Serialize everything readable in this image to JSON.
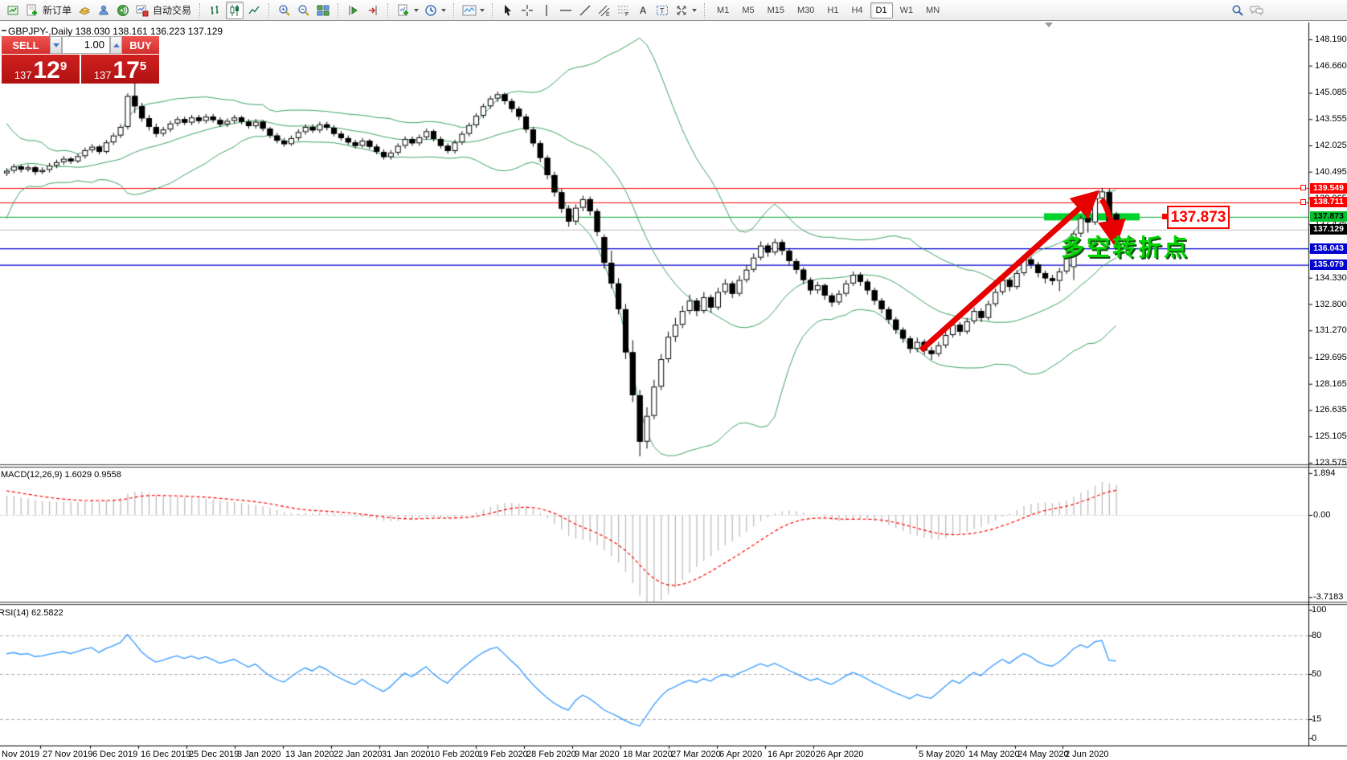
{
  "toolbar": {
    "new_order_label": "新订单",
    "autotrade_label": "自动交易",
    "text_tool_glyph": "A",
    "label_tool_glyph": "T",
    "channel_glyph": "E",
    "fibo_glyph": "F",
    "timeframes": {
      "items": [
        "M1",
        "M5",
        "M15",
        "M30",
        "H1",
        "H4",
        "D1",
        "W1",
        "MN"
      ],
      "active": "D1"
    }
  },
  "chart": {
    "title": "GBPJPY-,Daily  138.030 138.161 136.223 137.129",
    "symbol": "GBPJPY-",
    "period": "Daily",
    "ohlc": {
      "open": "138.030",
      "high": "138.161",
      "low": "136.223",
      "close": "137.129"
    },
    "price_ticks": [
      {
        "t": "148.190",
        "p": 148.19
      },
      {
        "t": "146.660",
        "p": 146.66
      },
      {
        "t": "145.085",
        "p": 145.085
      },
      {
        "t": "143.555",
        "p": 143.555
      },
      {
        "t": "142.025",
        "p": 142.025
      },
      {
        "t": "140.495",
        "p": 140.495
      },
      {
        "t": "138.965",
        "p": 138.965
      },
      {
        "t": "137.435",
        "p": 137.435
      },
      {
        "t": "135.860",
        "p": 135.86
      },
      {
        "t": "134.330",
        "p": 134.33
      },
      {
        "t": "132.800",
        "p": 132.8
      },
      {
        "t": "131.270",
        "p": 131.27
      },
      {
        "t": "129.695",
        "p": 129.695
      },
      {
        "t": "128.165",
        "p": 128.165
      },
      {
        "t": "126.635",
        "p": 126.635
      },
      {
        "t": "125.105",
        "p": 125.105
      },
      {
        "t": "123.575",
        "p": 123.575
      }
    ],
    "level_badges": [
      {
        "t": "139.549",
        "p": 139.549,
        "bg": "#ff0000",
        "fg": "#ffffff"
      },
      {
        "t": "138.711",
        "p": 138.711,
        "bg": "#ff0000",
        "fg": "#ffffff"
      },
      {
        "t": "137.873",
        "p": 137.873,
        "bg": "#00c22c",
        "fg": "#000000"
      },
      {
        "t": "137.129",
        "p": 137.129,
        "bg": "#000000",
        "fg": "#ffffff"
      },
      {
        "t": "136.043",
        "p": 136.043,
        "bg": "#0000d0",
        "fg": "#ffffff"
      },
      {
        "t": "135.079",
        "p": 135.079,
        "bg": "#0000d0",
        "fg": "#ffffff"
      }
    ],
    "levels": [
      {
        "p": 139.549,
        "color": "#ff0000",
        "w": 1
      },
      {
        "p": 138.711,
        "color": "#ff0000",
        "w": 1
      },
      {
        "p": 137.873,
        "color": "#00a22a",
        "w": 1
      },
      {
        "p": 137.129,
        "color": "#bdbdbd",
        "w": 1
      },
      {
        "p": 136.043,
        "color": "#0000d0",
        "w": 1.2
      },
      {
        "p": 135.079,
        "color": "#0000d0",
        "w": 1.2
      }
    ],
    "green_zone_price": 137.873,
    "dates": [
      "Nov 2019",
      "27 Nov 2019",
      "6 Dec 2019",
      "16 Dec 2019",
      "25 Dec 2019",
      "3 Jan 2020",
      "13 Jan 2020",
      "22 Jan 2020",
      "31 Jan 2020",
      "10 Feb 2020",
      "19 Feb 2020",
      "28 Feb 2020",
      "9 Mar 2020",
      "18 Mar 2020",
      "27 Mar 2020",
      "6 Apr 2020",
      "16 Apr 2020",
      "26 Apr 2020",
      "5 May 2020",
      "14 May 2020",
      "24 May 2020",
      "2 Jun 2020"
    ],
    "pre_closes": [
      135.8,
      136.5,
      137.8,
      139.2,
      140.6,
      141.9,
      142.6,
      141.8,
      140.9,
      141.4,
      142.0,
      141.2,
      140.4,
      139.8,
      140.3,
      140.9,
      141.3,
      140.8,
      140.5,
      140.4
    ],
    "candles": [
      [
        140.4,
        140.7,
        140.25,
        140.55
      ],
      [
        140.55,
        140.95,
        140.4,
        140.8
      ],
      [
        140.8,
        140.9,
        140.45,
        140.62
      ],
      [
        140.62,
        140.9,
        140.5,
        140.75
      ],
      [
        140.75,
        140.85,
        140.3,
        140.48
      ],
      [
        140.48,
        140.75,
        140.35,
        140.6
      ],
      [
        140.6,
        141.0,
        140.45,
        140.85
      ],
      [
        140.85,
        141.2,
        140.7,
        141.05
      ],
      [
        141.05,
        141.4,
        140.9,
        141.25
      ],
      [
        141.25,
        141.35,
        140.95,
        141.1
      ],
      [
        141.1,
        141.55,
        141.0,
        141.4
      ],
      [
        141.4,
        141.9,
        141.25,
        141.75
      ],
      [
        141.75,
        142.1,
        141.6,
        141.95
      ],
      [
        141.95,
        142.05,
        141.5,
        141.65
      ],
      [
        141.65,
        142.35,
        141.55,
        142.2
      ],
      [
        142.2,
        142.75,
        142.05,
        142.6
      ],
      [
        142.6,
        143.25,
        142.45,
        143.1
      ],
      [
        143.1,
        145.05,
        142.95,
        144.9
      ],
      [
        144.9,
        147.15,
        143.9,
        144.3
      ],
      [
        144.3,
        144.5,
        143.4,
        143.6
      ],
      [
        143.6,
        143.8,
        142.9,
        143.1
      ],
      [
        143.1,
        143.3,
        142.5,
        142.7
      ],
      [
        142.7,
        143.1,
        142.55,
        142.95
      ],
      [
        142.95,
        143.45,
        142.8,
        143.3
      ],
      [
        143.3,
        143.7,
        143.15,
        143.55
      ],
      [
        143.55,
        143.7,
        143.2,
        143.35
      ],
      [
        143.35,
        143.8,
        143.2,
        143.65
      ],
      [
        143.65,
        143.8,
        143.3,
        143.45
      ],
      [
        143.45,
        143.85,
        143.3,
        143.7
      ],
      [
        143.7,
        143.85,
        143.35,
        143.5
      ],
      [
        143.5,
        143.65,
        143.1,
        143.25
      ],
      [
        143.25,
        143.6,
        143.1,
        143.45
      ],
      [
        143.45,
        143.8,
        143.3,
        143.65
      ],
      [
        143.65,
        143.75,
        143.25,
        143.4
      ],
      [
        143.4,
        143.55,
        143.0,
        143.15
      ],
      [
        143.15,
        143.55,
        143.0,
        143.4
      ],
      [
        143.4,
        143.5,
        142.85,
        143.0
      ],
      [
        143.0,
        143.1,
        142.45,
        142.6
      ],
      [
        142.6,
        142.75,
        142.15,
        142.3
      ],
      [
        142.3,
        142.45,
        141.95,
        142.1
      ],
      [
        142.1,
        142.6,
        142.0,
        142.45
      ],
      [
        142.45,
        142.95,
        142.3,
        142.8
      ],
      [
        142.8,
        143.25,
        142.65,
        143.1
      ],
      [
        143.1,
        143.25,
        142.75,
        142.9
      ],
      [
        142.9,
        143.4,
        142.75,
        143.25
      ],
      [
        143.25,
        143.4,
        142.9,
        143.05
      ],
      [
        143.05,
        143.2,
        142.55,
        142.7
      ],
      [
        142.7,
        142.85,
        142.3,
        142.45
      ],
      [
        142.45,
        142.6,
        142.05,
        142.2
      ],
      [
        142.2,
        142.35,
        141.85,
        142.0
      ],
      [
        142.0,
        142.45,
        141.9,
        142.3
      ],
      [
        142.3,
        142.4,
        141.8,
        141.95
      ],
      [
        141.95,
        142.1,
        141.5,
        141.65
      ],
      [
        141.65,
        141.8,
        141.2,
        141.35
      ],
      [
        141.35,
        141.75,
        141.2,
        141.6
      ],
      [
        141.6,
        142.15,
        141.45,
        142.0
      ],
      [
        142.0,
        142.55,
        141.85,
        142.4
      ],
      [
        142.4,
        142.55,
        142.0,
        142.15
      ],
      [
        142.15,
        142.65,
        142.0,
        142.5
      ],
      [
        142.5,
        143.0,
        142.35,
        142.85
      ],
      [
        142.85,
        142.95,
        142.25,
        142.4
      ],
      [
        142.4,
        142.55,
        141.85,
        142.0
      ],
      [
        142.0,
        142.15,
        141.55,
        141.7
      ],
      [
        141.7,
        142.35,
        141.55,
        142.2
      ],
      [
        142.2,
        142.85,
        142.05,
        142.7
      ],
      [
        142.7,
        143.35,
        142.55,
        143.2
      ],
      [
        143.2,
        143.9,
        143.05,
        143.75
      ],
      [
        143.75,
        144.45,
        143.6,
        144.3
      ],
      [
        144.3,
        144.9,
        144.15,
        144.75
      ],
      [
        144.75,
        145.15,
        144.55,
        145.0
      ],
      [
        145.0,
        145.1,
        144.4,
        144.6
      ],
      [
        144.6,
        144.75,
        143.95,
        144.15
      ],
      [
        144.15,
        144.3,
        143.5,
        143.7
      ],
      [
        143.7,
        143.85,
        142.75,
        142.95
      ],
      [
        142.95,
        143.1,
        141.95,
        142.15
      ],
      [
        142.15,
        142.3,
        141.05,
        141.3
      ],
      [
        141.3,
        141.45,
        140.05,
        140.3
      ],
      [
        140.3,
        140.5,
        139.05,
        139.3
      ],
      [
        139.3,
        139.5,
        138.1,
        138.35
      ],
      [
        138.35,
        138.55,
        137.3,
        137.6
      ],
      [
        137.6,
        138.6,
        137.4,
        138.4
      ],
      [
        138.4,
        139.1,
        138.2,
        138.9
      ],
      [
        138.9,
        139.05,
        137.95,
        138.2
      ],
      [
        138.2,
        138.35,
        136.75,
        137.0
      ],
      [
        136.7,
        136.85,
        134.85,
        135.2
      ],
      [
        135.2,
        135.9,
        133.7,
        134.0
      ],
      [
        134.0,
        134.3,
        132.2,
        132.5
      ],
      [
        132.5,
        132.8,
        129.6,
        130.0
      ],
      [
        130.0,
        130.7,
        127.1,
        127.5
      ],
      [
        127.5,
        127.8,
        123.95,
        124.8
      ],
      [
        124.8,
        126.8,
        124.4,
        126.3
      ],
      [
        126.3,
        128.4,
        126.1,
        128.0
      ],
      [
        128.0,
        129.9,
        127.8,
        129.6
      ],
      [
        129.6,
        131.2,
        129.4,
        130.9
      ],
      [
        130.9,
        132.0,
        130.6,
        131.6
      ],
      [
        131.6,
        132.7,
        131.4,
        132.4
      ],
      [
        132.4,
        133.35,
        132.2,
        133.0
      ],
      [
        133.0,
        133.15,
        132.1,
        132.4
      ],
      [
        132.4,
        133.5,
        132.25,
        133.2
      ],
      [
        133.2,
        133.35,
        132.3,
        132.6
      ],
      [
        132.6,
        133.75,
        132.45,
        133.5
      ],
      [
        133.5,
        134.25,
        133.35,
        134.0
      ],
      [
        134.0,
        134.15,
        133.15,
        133.4
      ],
      [
        133.4,
        134.45,
        133.25,
        134.2
      ],
      [
        134.2,
        135.05,
        134.05,
        134.8
      ],
      [
        134.8,
        135.75,
        134.65,
        135.5
      ],
      [
        135.5,
        136.45,
        135.35,
        136.2
      ],
      [
        136.2,
        136.35,
        135.55,
        135.8
      ],
      [
        135.8,
        136.6,
        135.65,
        136.4
      ],
      [
        136.4,
        136.55,
        135.65,
        135.9
      ],
      [
        135.9,
        136.05,
        135.05,
        135.3
      ],
      [
        135.3,
        135.45,
        134.55,
        134.8
      ],
      [
        134.8,
        134.95,
        133.95,
        134.2
      ],
      [
        134.2,
        134.35,
        133.35,
        133.6
      ],
      [
        133.6,
        134.1,
        133.4,
        133.9
      ],
      [
        133.9,
        134.0,
        133.05,
        133.3
      ],
      [
        133.3,
        133.45,
        132.65,
        132.9
      ],
      [
        132.9,
        133.6,
        132.75,
        133.4
      ],
      [
        133.4,
        134.2,
        133.25,
        134.0
      ],
      [
        134.0,
        134.7,
        133.85,
        134.5
      ],
      [
        134.5,
        134.65,
        133.85,
        134.1
      ],
      [
        134.1,
        134.25,
        133.35,
        133.6
      ],
      [
        133.6,
        133.75,
        132.75,
        133.0
      ],
      [
        133.0,
        133.15,
        132.25,
        132.5
      ],
      [
        132.5,
        132.65,
        131.65,
        131.9
      ],
      [
        131.9,
        132.05,
        131.05,
        131.3
      ],
      [
        131.3,
        131.45,
        130.55,
        130.8
      ],
      [
        130.8,
        130.95,
        129.95,
        130.2
      ],
      [
        130.2,
        130.85,
        130.0,
        130.6
      ],
      [
        130.6,
        130.75,
        129.85,
        130.1
      ],
      [
        130.1,
        130.3,
        129.55,
        129.9
      ],
      [
        129.9,
        130.6,
        129.75,
        130.4
      ],
      [
        130.4,
        131.2,
        130.25,
        131.0
      ],
      [
        131.0,
        131.8,
        130.85,
        131.6
      ],
      [
        131.6,
        131.75,
        130.95,
        131.2
      ],
      [
        131.2,
        132.0,
        131.05,
        131.8
      ],
      [
        131.8,
        132.6,
        131.65,
        132.4
      ],
      [
        132.4,
        132.55,
        131.75,
        132.0
      ],
      [
        132.0,
        133.0,
        131.85,
        132.8
      ],
      [
        132.8,
        133.7,
        132.65,
        133.5
      ],
      [
        133.5,
        134.4,
        133.35,
        134.2
      ],
      [
        134.2,
        134.35,
        133.55,
        133.8
      ],
      [
        133.8,
        134.8,
        133.65,
        134.6
      ],
      [
        134.6,
        135.6,
        134.45,
        135.4
      ],
      [
        135.4,
        135.55,
        134.85,
        135.1
      ],
      [
        135.1,
        135.25,
        134.35,
        134.6
      ],
      [
        134.6,
        134.75,
        134.0,
        134.3
      ],
      [
        134.3,
        134.5,
        133.9,
        134.15
      ],
      [
        134.15,
        134.9,
        133.55,
        134.7
      ],
      [
        134.7,
        135.85,
        134.55,
        135.6
      ],
      [
        134.95,
        137.05,
        134.2,
        136.9
      ],
      [
        136.9,
        137.95,
        136.7,
        137.8
      ],
      [
        137.8,
        138.35,
        136.95,
        137.55
      ],
      [
        137.55,
        139.1,
        137.4,
        138.95
      ],
      [
        138.95,
        139.556,
        138.6,
        139.35
      ],
      [
        139.3,
        139.5,
        136.95,
        137.25
      ],
      [
        138.03,
        138.161,
        136.223,
        137.129
      ]
    ]
  },
  "trade": {
    "sell_label": "SELL",
    "buy_label": "BUY",
    "volume": "1.00",
    "sell_price": {
      "prefix": "137",
      "big": "12",
      "sup": "9"
    },
    "buy_price": {
      "prefix": "137",
      "big": "17",
      "sup": "5"
    }
  },
  "annotations": {
    "turning_point": "多空转折点",
    "level_label": "137.873",
    "turning_point_color": "#00d400",
    "arrow_color": "#e60000"
  },
  "macd": {
    "label": "MACD(12,26,9) 1.6029 0.9558",
    "params": "12,26,9",
    "value": "1.6029",
    "signal": "0.9558",
    "axis": [
      {
        "t": "1.894",
        "v": 1.894
      },
      {
        "t": "0.00",
        "v": 0
      },
      {
        "t": "-3.7183",
        "v": -3.7183
      }
    ]
  },
  "rsi": {
    "label": "RSI(14) 62.5822",
    "value": "62.5822",
    "axis": [
      {
        "t": "100",
        "v": 100
      },
      {
        "t": "80",
        "v": 80
      },
      {
        "t": "50",
        "v": 50
      },
      {
        "t": "15",
        "v": 15
      },
      {
        "t": "0",
        "v": 0
      }
    ],
    "dashed_levels": [
      80,
      50,
      15
    ]
  },
  "colors": {
    "bollinger": "#3da463",
    "bull_body": "#ffffff",
    "bear_body": "#000000",
    "macd_hist": "#b8b8b8",
    "macd_signal": "#ff0000",
    "rsi_line": "#3399ff",
    "sell_buy_red": "#d32f2f"
  }
}
